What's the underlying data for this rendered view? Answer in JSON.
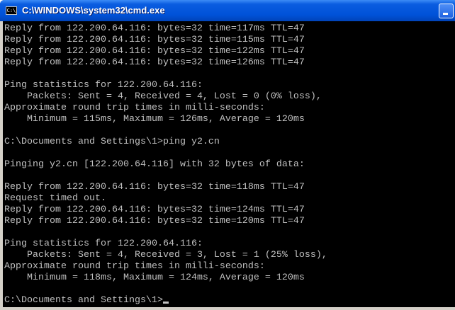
{
  "window": {
    "title": "C:\\WINDOWS\\system32\\cmd.exe",
    "icon": "cmd-icon",
    "icon_text": "C:\\"
  },
  "console": {
    "lines": [
      "Reply from 122.200.64.116: bytes=32 time=117ms TTL=47",
      "Reply from 122.200.64.116: bytes=32 time=115ms TTL=47",
      "Reply from 122.200.64.116: bytes=32 time=122ms TTL=47",
      "Reply from 122.200.64.116: bytes=32 time=126ms TTL=47",
      "",
      "Ping statistics for 122.200.64.116:",
      "    Packets: Sent = 4, Received = 4, Lost = 0 (0% loss),",
      "Approximate round trip times in milli-seconds:",
      "    Minimum = 115ms, Maximum = 126ms, Average = 120ms",
      "",
      "C:\\Documents and Settings\\1>ping y2.cn",
      "",
      "Pinging y2.cn [122.200.64.116] with 32 bytes of data:",
      "",
      "Reply from 122.200.64.116: bytes=32 time=118ms TTL=47",
      "Request timed out.",
      "Reply from 122.200.64.116: bytes=32 time=124ms TTL=47",
      "Reply from 122.200.64.116: bytes=32 time=120ms TTL=47",
      "",
      "Ping statistics for 122.200.64.116:",
      "    Packets: Sent = 4, Received = 3, Lost = 1 (25% loss),",
      "Approximate round trip times in milli-seconds:",
      "    Minimum = 118ms, Maximum = 124ms, Average = 120ms",
      ""
    ],
    "prompt": "C:\\Documents and Settings\\1>"
  }
}
